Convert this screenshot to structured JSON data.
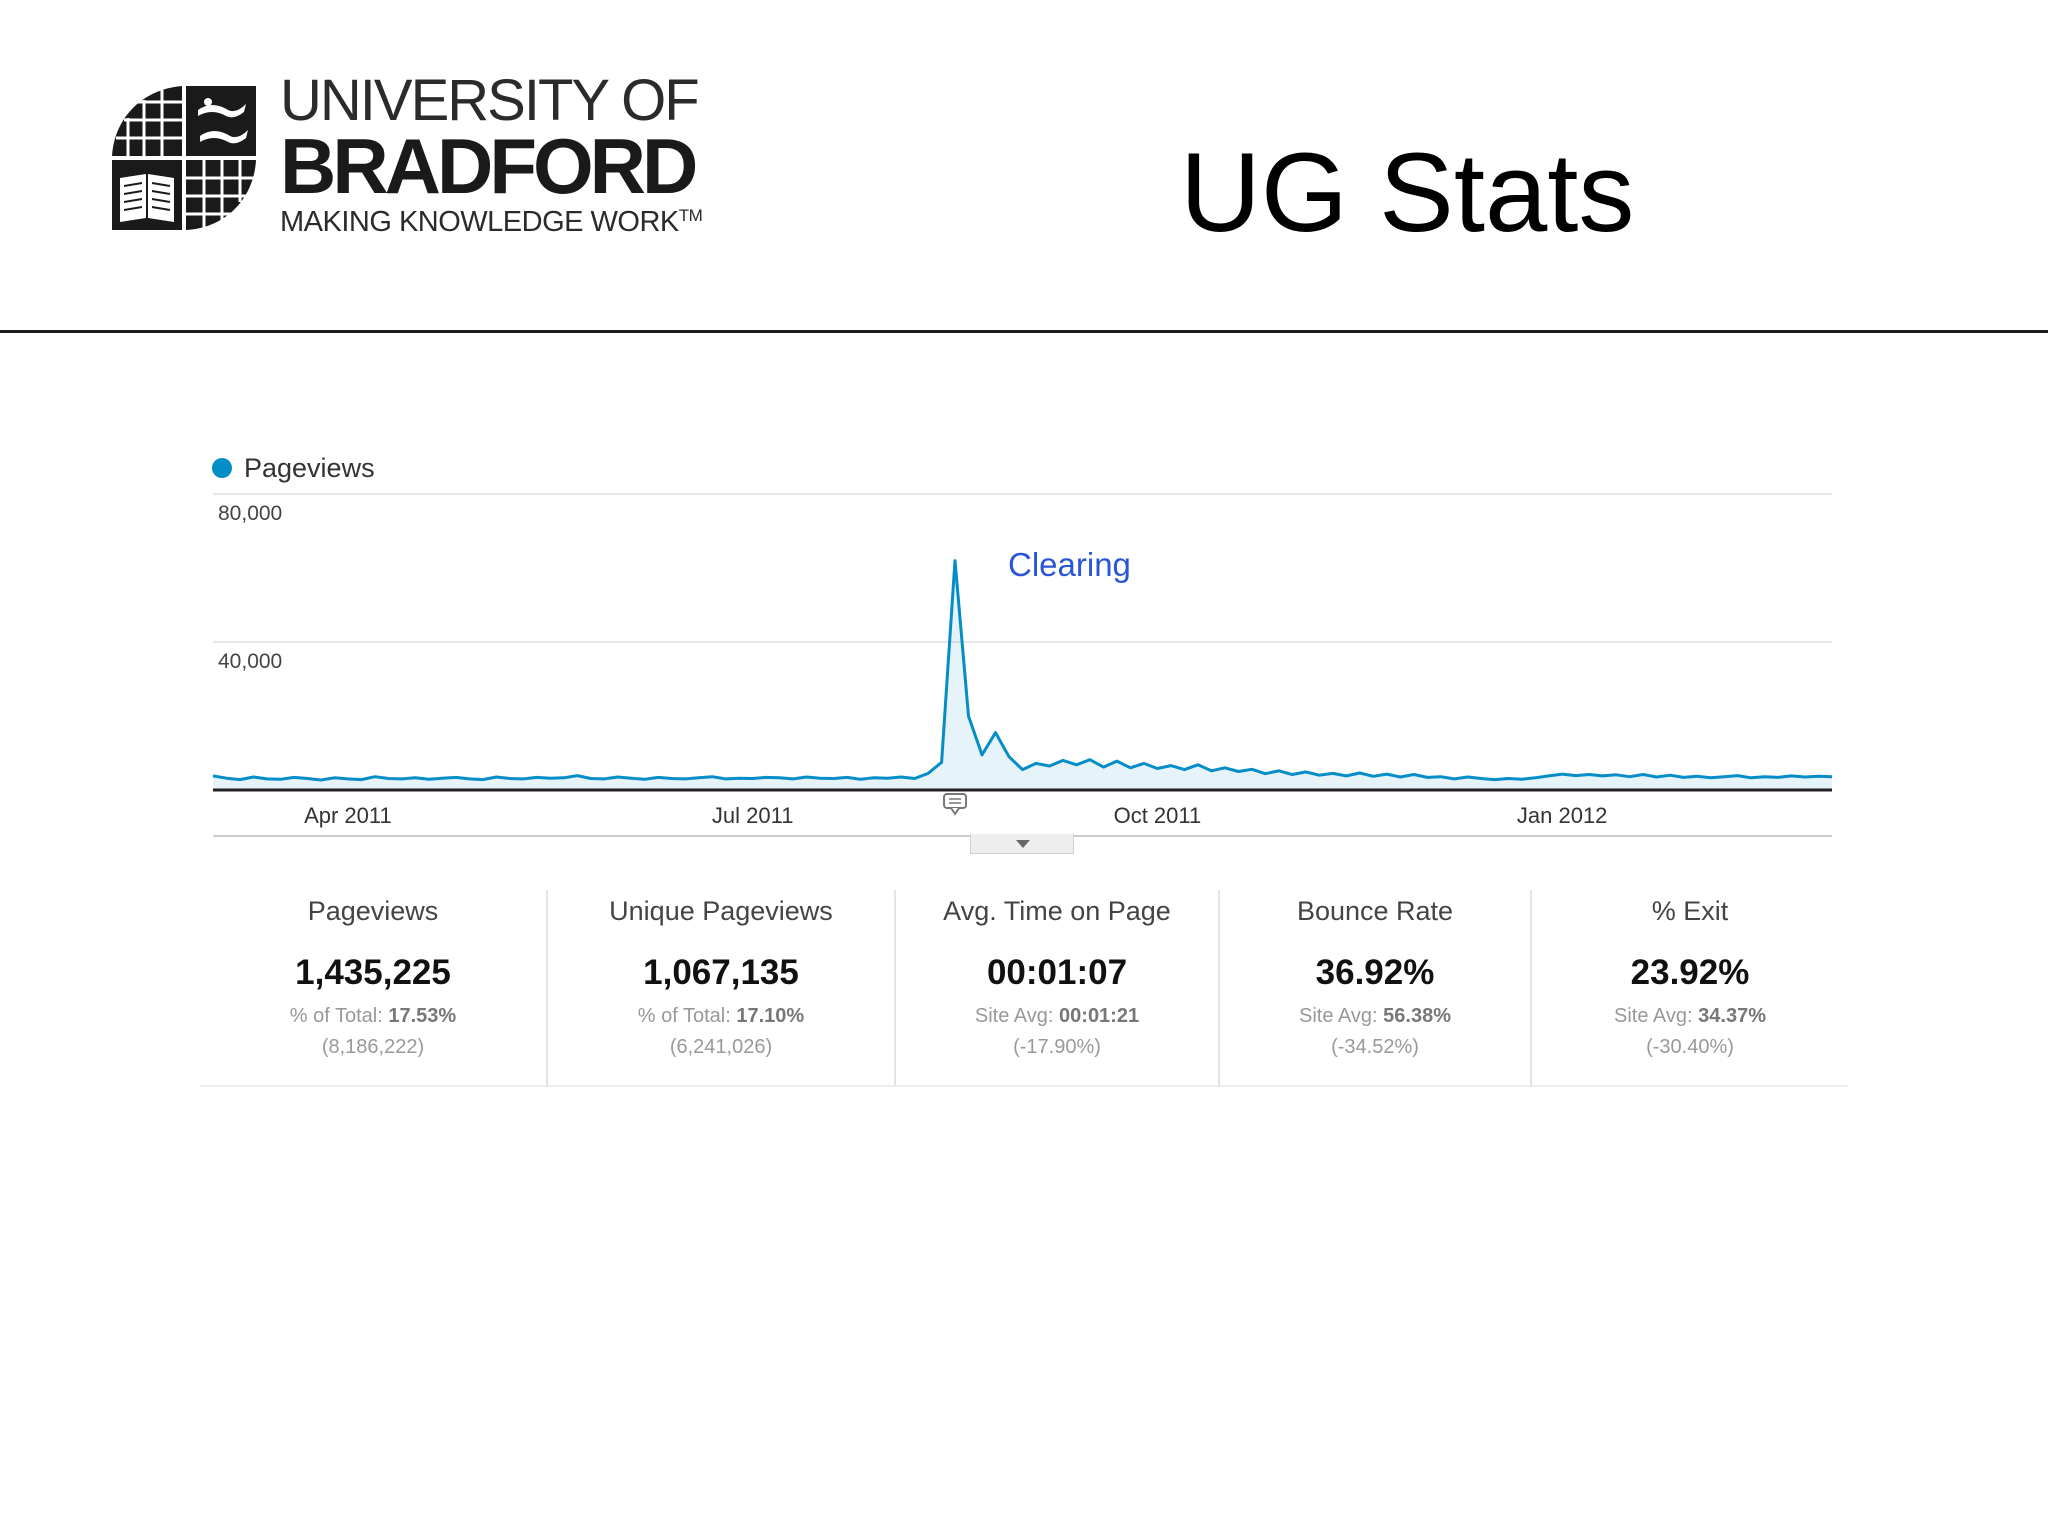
{
  "logo": {
    "line1": "UNIVERSITY OF",
    "line2": "BRADFORD",
    "line3": "MAKING KNOWLEDGE WORK",
    "tm": "TM"
  },
  "slide_title": "UG Stats",
  "colors": {
    "series": "#058dc7",
    "annotation": "#2a55d8",
    "axis": "#222222"
  },
  "chart_data": {
    "type": "line",
    "legend": [
      "Pageviews"
    ],
    "legend_position": "top-left",
    "grid": true,
    "y_ticks": [
      "80,000",
      "40,000"
    ],
    "ylim": [
      0,
      80000
    ],
    "x_ticks": [
      "Apr 2011",
      "Jul 2011",
      "Oct 2011",
      "Jan 2012"
    ],
    "x_tick_positions": [
      10,
      40,
      70,
      100
    ],
    "xlim": [
      0,
      120
    ],
    "annotation": {
      "text": "Clearing",
      "x": 55
    },
    "series": [
      {
        "name": "Pageviews",
        "x": [
          0,
          1,
          2,
          3,
          4,
          5,
          6,
          7,
          8,
          9,
          10,
          11,
          12,
          13,
          14,
          15,
          16,
          17,
          18,
          19,
          20,
          21,
          22,
          23,
          24,
          25,
          26,
          27,
          28,
          29,
          30,
          31,
          32,
          33,
          34,
          35,
          36,
          37,
          38,
          39,
          40,
          41,
          42,
          43,
          44,
          45,
          46,
          47,
          48,
          49,
          50,
          51,
          52,
          53,
          54,
          55,
          56,
          57,
          58,
          59,
          60,
          61,
          62,
          63,
          64,
          65,
          66,
          67,
          68,
          69,
          70,
          71,
          72,
          73,
          74,
          75,
          76,
          77,
          78,
          79,
          80,
          81,
          82,
          83,
          84,
          85,
          86,
          87,
          88,
          89,
          90,
          91,
          92,
          93,
          94,
          95,
          96,
          97,
          98,
          99,
          100,
          101,
          102,
          103,
          104,
          105,
          106,
          107,
          108,
          109,
          110,
          111,
          112,
          113,
          114,
          115,
          116,
          117,
          118,
          119,
          120
        ],
        "values": [
          3800,
          3200,
          2800,
          3500,
          3000,
          2900,
          3400,
          3100,
          2700,
          3300,
          3000,
          2800,
          3600,
          3100,
          3000,
          3300,
          2900,
          3200,
          3400,
          3000,
          2800,
          3500,
          3100,
          3000,
          3400,
          3200,
          3300,
          3900,
          3100,
          3000,
          3500,
          3200,
          2900,
          3400,
          3100,
          3000,
          3300,
          3600,
          3000,
          3200,
          3100,
          3400,
          3300,
          3000,
          3500,
          3200,
          3100,
          3400,
          2900,
          3300,
          3200,
          3500,
          3100,
          4500,
          7500,
          62000,
          20000,
          9500,
          15500,
          9000,
          5500,
          7200,
          6500,
          8000,
          6800,
          8200,
          6200,
          7800,
          6000,
          7200,
          5800,
          6600,
          5500,
          6800,
          5200,
          6000,
          5000,
          5600,
          4400,
          5200,
          4200,
          4900,
          4000,
          4500,
          3800,
          4600,
          3700,
          4300,
          3500,
          4200,
          3400,
          3600,
          3000,
          3500,
          3100,
          2800,
          3100,
          2900,
          3300,
          3800,
          4300,
          3900,
          4200,
          3800,
          4100,
          3600,
          4200,
          3500,
          4000,
          3400,
          3700,
          3300,
          3600,
          3900,
          3300,
          3600,
          3400,
          3800,
          3500,
          3700,
          3600
        ]
      }
    ]
  },
  "scorecard": [
    {
      "label": "Pageviews",
      "value": "1,435,225",
      "sub_prefix": "% of Total:",
      "sub_value": "17.53%",
      "sub2": "(8,186,222)"
    },
    {
      "label": "Unique Pageviews",
      "value": "1,067,135",
      "sub_prefix": "% of Total:",
      "sub_value": "17.10%",
      "sub2": "(6,241,026)"
    },
    {
      "label": "Avg. Time on Page",
      "value": "00:01:07",
      "sub_prefix": "Site Avg:",
      "sub_value": "00:01:21",
      "sub2": "(-17.90%)"
    },
    {
      "label": "Bounce Rate",
      "value": "36.92%",
      "sub_prefix": "Site Avg:",
      "sub_value": "56.38%",
      "sub2": "(-34.52%)"
    },
    {
      "label": "% Exit",
      "value": "23.92%",
      "sub_prefix": "Site Avg:",
      "sub_value": "34.37%",
      "sub2": "(-30.40%)"
    }
  ]
}
